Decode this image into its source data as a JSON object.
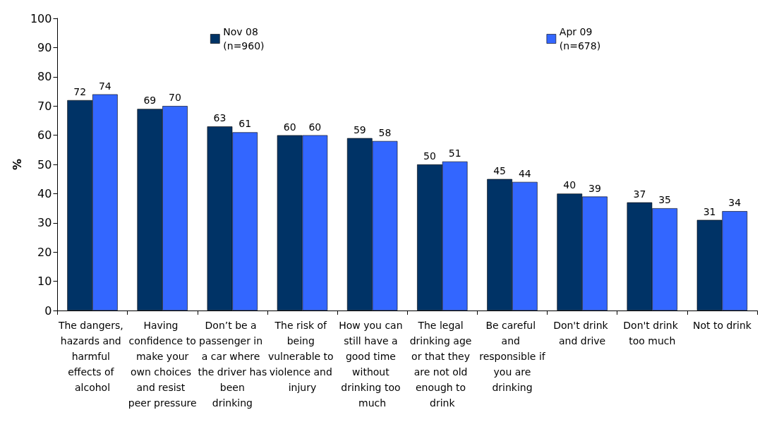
{
  "chart_data": {
    "type": "bar",
    "ylabel": "%",
    "categories": [
      "The dangers, hazards and harmful effects of alcohol",
      "Having confidence to make your own choices and resist peer pressure",
      "Don’t be a passenger in a car where the driver has been drinking",
      "The risk of being vulnerable to violence and injury",
      "How you can still have a good time without drinking too much",
      "The legal drinking age or that they are not old enough to drink",
      "Be careful and responsible if you are drinking",
      "Don't drink and drive",
      "Don't drink too much",
      "Not to drink"
    ],
    "series": [
      {
        "name": "Nov 08\n(n=960)",
        "color": "#003366",
        "values": [
          72,
          69,
          63,
          60,
          59,
          50,
          45,
          40,
          37,
          31
        ]
      },
      {
        "name": "Apr 09\n(n=678)",
        "color": "#3366ff",
        "values": [
          74,
          70,
          61,
          60,
          58,
          51,
          44,
          39,
          35,
          34
        ]
      }
    ],
    "ylim": [
      0,
      100
    ],
    "yticks": [
      0,
      10,
      20,
      30,
      40,
      50,
      60,
      70,
      80,
      90,
      100
    ],
    "grid": false,
    "legend": "top",
    "data_labels": true
  }
}
